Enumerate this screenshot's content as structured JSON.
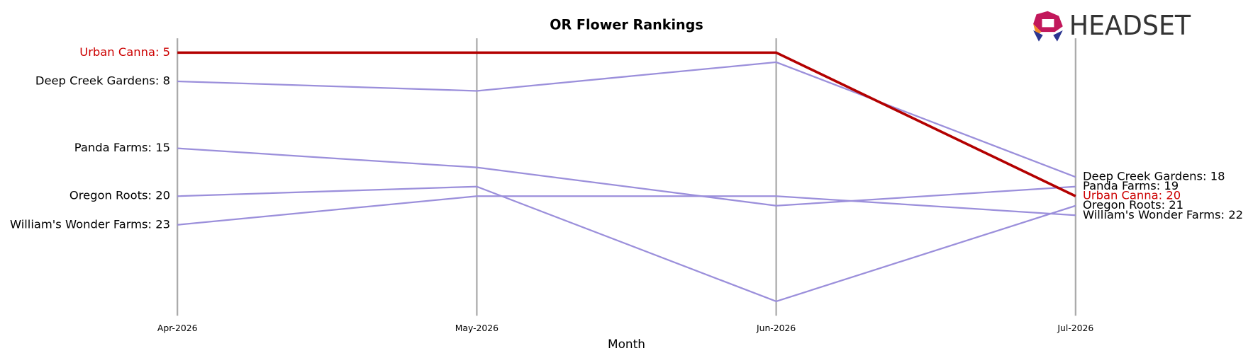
{
  "chart_data": {
    "type": "bump",
    "title": "OR Flower Rankings",
    "x_label": "Month",
    "logo": "HEADSET",
    "categories": [
      "Apr-2026",
      "May-2026",
      "Jun-2026",
      "Jul-2026"
    ],
    "ylim": [
      32.5,
      3.5
    ],
    "inverted": true,
    "series": [
      {
        "name": "Deep Creek Gardens",
        "color": "#9b8fdb",
        "label_color": "#000000",
        "width": 2,
        "values": [
          8,
          9,
          6,
          18
        ],
        "value_labels": [
          "Deep Creek Gardens: 8",
          null,
          null,
          "Deep Creek Gardens: 18"
        ]
      },
      {
        "name": "Panda Farms",
        "color": "#9b8fdb",
        "label_color": "#000000",
        "width": 2,
        "values": [
          15,
          17,
          21,
          19
        ],
        "value_labels": [
          "Panda Farms: 15",
          null,
          null,
          "Panda Farms: 19"
        ]
      },
      {
        "name": "Oregon Roots",
        "color": "#9b8fdb",
        "label_color": "#000000",
        "width": 2,
        "values": [
          20,
          19,
          31,
          21
        ],
        "value_labels": [
          "Oregon Roots: 20",
          null,
          null,
          "Oregon Roots: 21"
        ]
      },
      {
        "name": "William's Wonder Farms",
        "color": "#9b8fdb",
        "label_color": "#000000",
        "width": 2,
        "values": [
          23,
          20,
          20,
          22
        ],
        "value_labels": [
          "William's Wonder Farms: 23",
          null,
          null,
          "William's Wonder Farms: 22"
        ]
      },
      {
        "name": "Urban Canna",
        "color": "#b30000",
        "label_color": "#cc0000",
        "width": 3.2,
        "values": [
          5,
          5,
          5,
          20
        ],
        "value_labels": [
          "Urban Canna: 5",
          null,
          null,
          "Urban Canna: 20"
        ]
      }
    ]
  }
}
